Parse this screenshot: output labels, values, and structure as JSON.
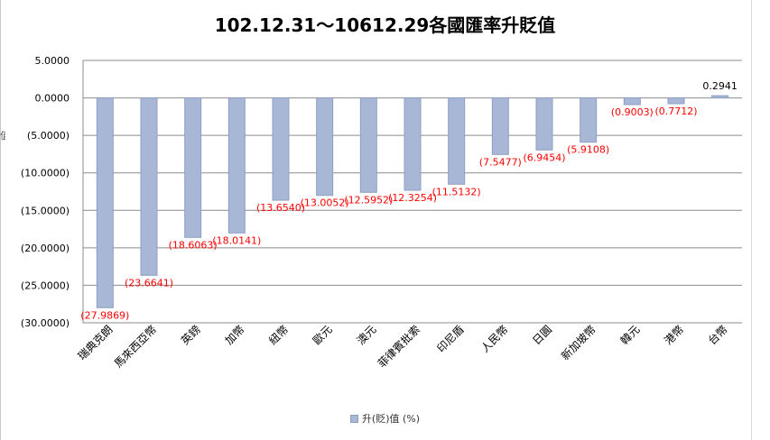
{
  "chart_data": {
    "type": "bar",
    "title": "102.12.31～10612.29各國匯率升貶值",
    "categories": [
      "瑞典克朗",
      "馬來西亞幣",
      "英鎊",
      "加幣",
      "紐幣",
      "歐元",
      "澳元",
      "菲律賓批索",
      "印尼盾",
      "人民幣",
      "日圓",
      "新加坡幣",
      "韓元",
      "港幣",
      "台幣"
    ],
    "series": [
      {
        "name": "升(貶)值 (%)",
        "values": [
          -27.9869,
          -23.6641,
          -18.6063,
          -18.0141,
          -13.654,
          -13.0052,
          -12.5952,
          -12.3254,
          -11.5132,
          -7.5477,
          -6.9454,
          -5.9108,
          -0.9003,
          -0.7712,
          0.2941
        ]
      }
    ],
    "data_labels": [
      "(27.9869)",
      "(23.6641)",
      "(18.6063)",
      "(18.0141)",
      "(13.6540)",
      "(13.0052)",
      "(12.5952)",
      "(12.3254)",
      "(11.5132)",
      "(7.5477)",
      "(6.9454)",
      "(5.9108)",
      "(0.9003)",
      "(0.7712)",
      "0.2941"
    ],
    "ylim": [
      -30,
      5
    ],
    "yticks": [
      5,
      0,
      -5,
      -10,
      -15,
      -20,
      -25,
      -30
    ],
    "ytick_labels": [
      "5.0000",
      "0.0000",
      "(5.0000)",
      "(10.0000)",
      "(15.0000)",
      "(20.0000)",
      "(25.0000)",
      "(30.0000)"
    ],
    "grid": true,
    "legend_position": "bottom",
    "colors": {
      "bar_fill": "#a9b7d6",
      "bar_stroke": "#8f9fc4",
      "negative_label": "#ff0000",
      "positive_label": "#000000",
      "grid": "#8c8c8c",
      "axis_text": "#000000"
    }
  },
  "legend": {
    "label": "升(貶)值 (%)"
  },
  "left_cut_text": "值"
}
